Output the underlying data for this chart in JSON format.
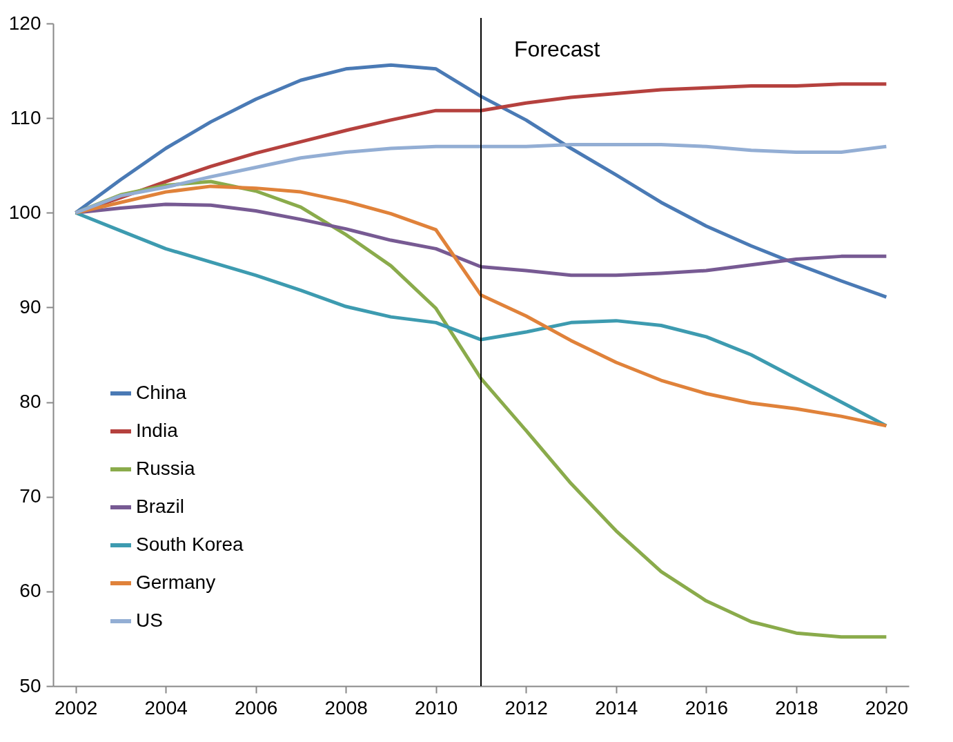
{
  "chart_data": {
    "type": "line",
    "x": [
      2002,
      2003,
      2004,
      2005,
      2006,
      2007,
      2008,
      2009,
      2010,
      2011,
      2012,
      2013,
      2014,
      2015,
      2016,
      2017,
      2018,
      2019,
      2020
    ],
    "xlim": [
      2001.5,
      2020.5
    ],
    "xticks": [
      2002,
      2004,
      2006,
      2008,
      2010,
      2012,
      2014,
      2016,
      2018,
      2020
    ],
    "ylim": [
      50,
      120
    ],
    "yticks": [
      50,
      60,
      70,
      80,
      90,
      100,
      110,
      120
    ],
    "grid": false,
    "legend": "bottom left",
    "line_style": "solid",
    "marker": "none",
    "ref_lines": [
      {
        "axis": "x",
        "value": 2011,
        "color": "#000000"
      }
    ],
    "annotations": [
      "Forecast"
    ],
    "series": [
      {
        "name": "China",
        "color": "#4a7ab5",
        "values": [
          100,
          103.5,
          106.8,
          109.6,
          112.0,
          114.0,
          115.2,
          115.6,
          115.2,
          112.3,
          109.8,
          106.8,
          104.0,
          101.1,
          98.6,
          96.5,
          94.6,
          92.8,
          91.1
        ]
      },
      {
        "name": "India",
        "color": "#b5413e",
        "values": [
          100,
          101.6,
          103.3,
          104.9,
          106.3,
          107.5,
          108.7,
          109.8,
          110.8,
          110.8,
          111.6,
          112.2,
          112.6,
          113.0,
          113.2,
          113.4,
          113.4,
          113.6,
          113.6
        ]
      },
      {
        "name": "Russia",
        "color": "#8aab4b",
        "values": [
          100,
          101.9,
          102.9,
          103.3,
          102.3,
          100.6,
          97.7,
          94.4,
          89.9,
          82.5,
          77.0,
          71.4,
          66.4,
          62.1,
          59.0,
          56.8,
          55.6,
          55.2,
          55.2
        ]
      },
      {
        "name": "Brazil",
        "color": "#775a93",
        "values": [
          100,
          100.5,
          100.9,
          100.8,
          100.2,
          99.3,
          98.3,
          97.1,
          96.2,
          94.3,
          93.9,
          93.4,
          93.4,
          93.6,
          93.9,
          94.5,
          95.1,
          95.4,
          95.4
        ]
      },
      {
        "name": "South Korea",
        "color": "#3d9bb0",
        "values": [
          100,
          98.1,
          96.2,
          94.8,
          93.4,
          91.8,
          90.1,
          89.0,
          88.4,
          86.6,
          87.4,
          88.4,
          88.6,
          88.1,
          86.9,
          85.0,
          82.5,
          80.0,
          77.5
        ]
      },
      {
        "name": "Germany",
        "color": "#e0823a",
        "values": [
          100,
          101.1,
          102.2,
          102.8,
          102.6,
          102.2,
          101.2,
          99.9,
          98.2,
          91.3,
          89.1,
          86.5,
          84.2,
          82.3,
          80.9,
          79.9,
          79.3,
          78.5,
          77.5
        ]
      },
      {
        "name": "US",
        "color": "#93aed4",
        "values": [
          100,
          101.8,
          102.7,
          103.8,
          104.8,
          105.8,
          106.4,
          106.8,
          107.0,
          107.0,
          107.0,
          107.2,
          107.2,
          107.2,
          107.0,
          106.6,
          106.4,
          106.4,
          107.0
        ]
      }
    ]
  }
}
